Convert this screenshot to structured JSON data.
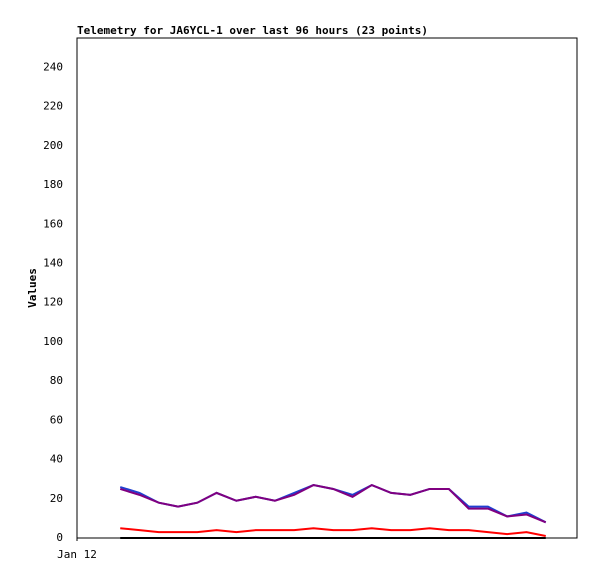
{
  "chart_data": {
    "type": "line",
    "title": "Telemetry for JA6YCL-1 over last 96 hours (23 points)",
    "y_label": "Values",
    "x": [
      8.3,
      12.0,
      15.7,
      19.4,
      23.1,
      26.8,
      30.6,
      34.3,
      38.0,
      41.7,
      45.4,
      49.2,
      52.9,
      56.6,
      60.3,
      64.0,
      67.7,
      71.4,
      75.2,
      78.9,
      82.6,
      86.3,
      90.0
    ],
    "series": [
      {
        "color": "#1f3fd0",
        "values": [
          26,
          23,
          18,
          16,
          18,
          23,
          19,
          21,
          19,
          23,
          27,
          25,
          22,
          27,
          23,
          22,
          25,
          25,
          16,
          16,
          11,
          13,
          8
        ]
      },
      {
        "color": "#800080",
        "values": [
          25,
          22,
          18,
          16,
          18,
          23,
          19,
          21,
          19,
          22,
          27,
          25,
          21,
          27,
          23,
          22,
          25,
          25,
          15,
          15,
          11,
          12,
          8
        ]
      },
      {
        "color": "#ff0000",
        "values": [
          5,
          4,
          3,
          3,
          3,
          4,
          3,
          4,
          4,
          4,
          5,
          4,
          4,
          5,
          4,
          4,
          5,
          4,
          4,
          3,
          2,
          3,
          1
        ]
      },
      {
        "color": "#000000",
        "values": [
          0,
          0,
          0,
          0,
          0,
          0,
          0,
          0,
          0,
          0,
          0,
          0,
          0,
          0,
          0,
          0,
          0,
          0,
          0,
          0,
          0,
          0,
          0
        ]
      }
    ],
    "xlim": [
      0,
      96
    ],
    "xticks": [
      {
        "value": 0,
        "label": "Jan 12"
      }
    ],
    "ylim": [
      0,
      255
    ],
    "yticks": [
      0,
      20,
      40,
      60,
      80,
      100,
      120,
      140,
      160,
      180,
      200,
      220,
      240
    ],
    "grid": false
  }
}
